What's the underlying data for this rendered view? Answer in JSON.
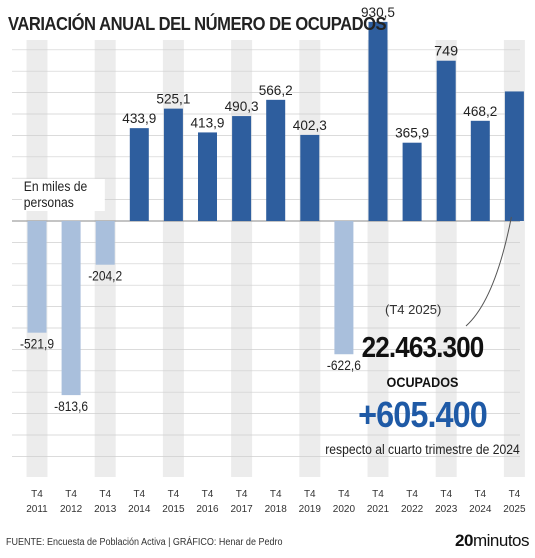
{
  "chart_data": {
    "type": "bar",
    "title": "VARIACIÓN ANUAL DEL NÚMERO DE OCUPADOS",
    "unit_label": "En miles de personas",
    "categories": [
      [
        "T4",
        "2011"
      ],
      [
        "T4",
        "2012"
      ],
      [
        "T4",
        "2013"
      ],
      [
        "T4",
        "2014"
      ],
      [
        "T4",
        "2015"
      ],
      [
        "T4",
        "2016"
      ],
      [
        "T4",
        "2017"
      ],
      [
        "T4",
        "2018"
      ],
      [
        "T4",
        "2019"
      ],
      [
        "T4",
        "2020"
      ],
      [
        "T4",
        "2021"
      ],
      [
        "T4",
        "2022"
      ],
      [
        "T4",
        "2023"
      ],
      [
        "T4",
        "2024"
      ],
      [
        "T4",
        "2025"
      ]
    ],
    "values": [
      -521.9,
      -813.6,
      -204.2,
      433.9,
      525.1,
      413.9,
      490.3,
      566.2,
      402.3,
      -622.6,
      930.5,
      365.9,
      749,
      468.2,
      605.4
    ],
    "value_labels": [
      "-521,9",
      "-813,6",
      "-204,2",
      "433,9",
      "525,1",
      "413,9",
      "490,3",
      "566,2",
      "402,3",
      "-622,6",
      "930,5",
      "365,9",
      "749",
      "468,2",
      ""
    ],
    "colors": {
      "positive": "#2e5e9e",
      "negative": "#a9bfdc",
      "band": "#ececec",
      "highlight": "#1f5aa6"
    }
  },
  "callout": {
    "period": "(T4 2025)",
    "total": "22.463.300",
    "unit": "OCUPADOS",
    "change": "+605.400",
    "note": "respecto al cuarto trimestre de 2024"
  },
  "footer": {
    "source": "FUENTE: Encuesta de Población Activa  |  GRÁFICO: Henar de Pedro",
    "brand_bold": "20",
    "brand_light": "minutos"
  }
}
